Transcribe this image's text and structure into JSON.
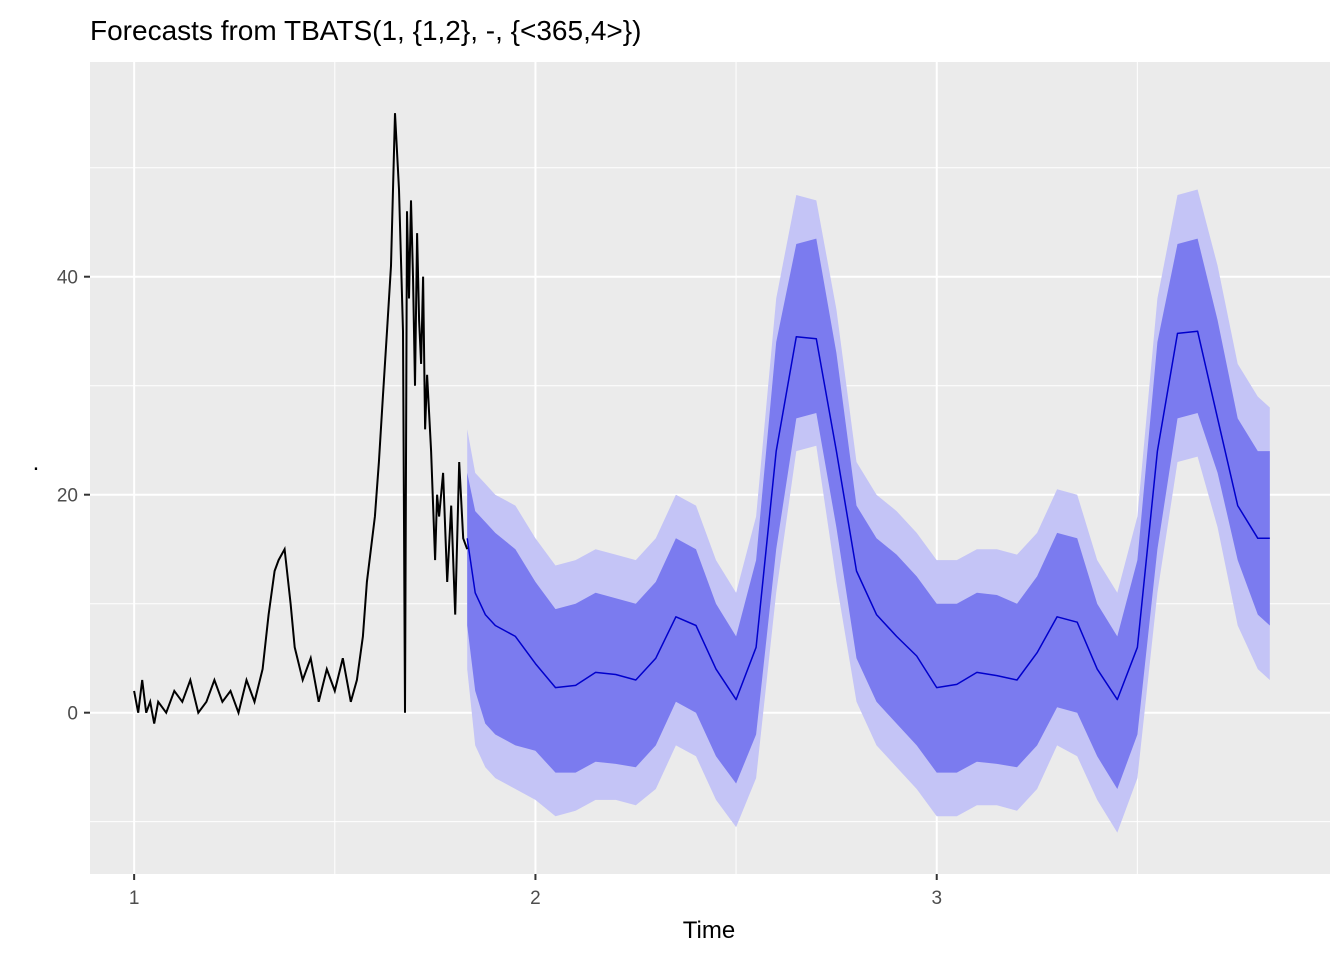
{
  "chart_data": {
    "type": "line",
    "title": "Forecasts from TBATS(1, {1,2}, -, {<365,4>})",
    "xlabel": "Time",
    "ylabel": ".",
    "xlim": [
      0.89,
      3.98
    ],
    "ylim": [
      -14.8,
      59.7
    ],
    "x_ticks": [
      1,
      2,
      3
    ],
    "x_tick_labels": [
      "1",
      "2",
      "3"
    ],
    "y_ticks": [
      0,
      20,
      40
    ],
    "y_tick_labels": [
      "0",
      "20",
      "40"
    ],
    "grid": true,
    "colors": {
      "panel": "#ebebeb",
      "grid": "#ffffff",
      "history": "#000000",
      "forecast": "#0000cc",
      "band80": "#7b7bef",
      "band95": "#c4c4f6"
    },
    "history": {
      "name": "",
      "x": [
        1.0,
        1.01,
        1.02,
        1.03,
        1.04,
        1.05,
        1.06,
        1.08,
        1.1,
        1.12,
        1.14,
        1.16,
        1.18,
        1.2,
        1.22,
        1.24,
        1.26,
        1.28,
        1.3,
        1.32,
        1.335,
        1.35,
        1.36,
        1.375,
        1.39,
        1.4,
        1.42,
        1.44,
        1.46,
        1.48,
        1.5,
        1.52,
        1.54,
        1.555,
        1.57,
        1.58,
        1.59,
        1.6,
        1.61,
        1.62,
        1.63,
        1.64,
        1.65,
        1.66,
        1.67,
        1.675,
        1.68,
        1.685,
        1.69,
        1.695,
        1.7,
        1.705,
        1.71,
        1.715,
        1.72,
        1.725,
        1.73,
        1.74,
        1.75,
        1.755,
        1.76,
        1.77,
        1.78,
        1.79,
        1.8,
        1.81,
        1.82,
        1.83
      ],
      "values": [
        2,
        0,
        3,
        0,
        1,
        -1,
        1,
        0,
        2,
        1,
        3,
        0,
        1,
        3,
        1,
        2,
        0,
        3,
        1,
        4,
        9,
        13,
        14,
        15,
        10,
        6,
        3,
        5,
        1,
        4,
        2,
        5,
        1,
        3,
        7,
        12,
        15,
        18,
        23,
        29,
        35,
        41,
        55,
        48,
        35,
        0,
        46,
        38,
        47,
        40,
        30,
        44,
        36,
        32,
        40,
        26,
        31,
        24,
        14,
        20,
        18,
        22,
        12,
        19,
        9,
        23,
        16,
        15
      ]
    },
    "forecast": {
      "name": "",
      "x": [
        1.83,
        1.85,
        1.875,
        1.9,
        1.95,
        2.0,
        2.05,
        2.1,
        2.15,
        2.2,
        2.25,
        2.3,
        2.35,
        2.4,
        2.45,
        2.5,
        2.55,
        2.6,
        2.65,
        2.7,
        2.75,
        2.8,
        2.85,
        2.9,
        2.95,
        3.0,
        3.05,
        3.1,
        3.15,
        3.2,
        3.25,
        3.3,
        3.35,
        3.4,
        3.45,
        3.5,
        3.55,
        3.6,
        3.65,
        3.7,
        3.75,
        3.8,
        3.83
      ],
      "mean": [
        16,
        11,
        9,
        8,
        7,
        4.5,
        2.3,
        2.5,
        3.7,
        3.5,
        3,
        5,
        8.8,
        8,
        4,
        1.2,
        6,
        24,
        34.5,
        34.3,
        24,
        13,
        9,
        7,
        5.2,
        2.3,
        2.6,
        3.7,
        3.4,
        3,
        5.5,
        8.8,
        8.3,
        4,
        1.2,
        6,
        24,
        34.8,
        35,
        27,
        19,
        16,
        16
      ],
      "lo80": [
        8,
        2,
        -1,
        -2,
        -3,
        -3.5,
        -5.5,
        -5.5,
        -4.5,
        -4.7,
        -5,
        -3,
        1,
        0,
        -4,
        -6.5,
        -2,
        15,
        27,
        27.5,
        17,
        5,
        1,
        -1,
        -3,
        -5.5,
        -5.5,
        -4.5,
        -4.7,
        -5,
        -3,
        0.5,
        0,
        -4,
        -7,
        -2,
        15,
        27,
        27.5,
        22,
        14,
        9,
        8
      ],
      "hi80": [
        22,
        18.5,
        17.5,
        16.5,
        15,
        12,
        9.5,
        10,
        11,
        10.5,
        10,
        12,
        16,
        15,
        10,
        7,
        14,
        34,
        43,
        43.5,
        33,
        19,
        16,
        14.5,
        12.5,
        10,
        10,
        11,
        10.8,
        10,
        12.5,
        16.5,
        16,
        10,
        7,
        14,
        34,
        43,
        43.5,
        36,
        27,
        24,
        24
      ],
      "lo95": [
        4,
        -3,
        -5,
        -6,
        -7,
        -8,
        -9.5,
        -9,
        -8,
        -8,
        -8.5,
        -7,
        -3,
        -4,
        -8,
        -10.5,
        -6,
        11,
        24,
        24.5,
        12,
        1,
        -3,
        -5,
        -7,
        -9.5,
        -9.5,
        -8.5,
        -8.5,
        -9,
        -7,
        -3,
        -4,
        -8,
        -11,
        -6,
        11,
        23,
        23.5,
        17,
        8,
        4,
        3
      ],
      "hi95": [
        26,
        22,
        21,
        20,
        19,
        16,
        13.5,
        14,
        15,
        14.5,
        14,
        16,
        20,
        19,
        14,
        11,
        18,
        38,
        47.5,
        47,
        37,
        23,
        20,
        18.5,
        16.5,
        14,
        14,
        15,
        15,
        14.5,
        16.5,
        20.5,
        20,
        14,
        11,
        18,
        38,
        47.5,
        48,
        41,
        32,
        29,
        28
      ]
    }
  }
}
